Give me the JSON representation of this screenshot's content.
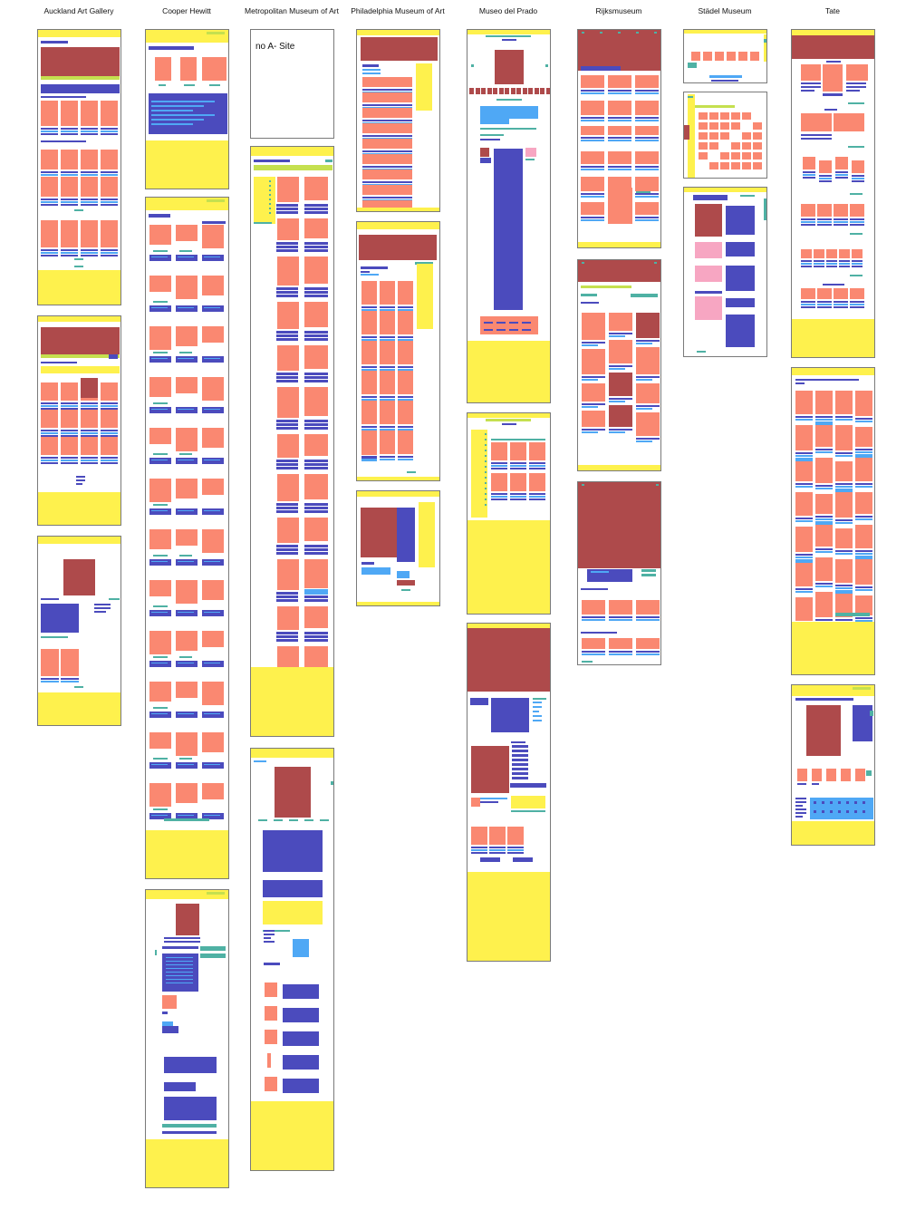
{
  "museums": [
    {
      "id": "auckland",
      "name": "Auckland Art Gallery"
    },
    {
      "id": "cooper",
      "name": "Cooper Hewitt"
    },
    {
      "id": "met",
      "name": "Metropolitan Museum of Art"
    },
    {
      "id": "phila",
      "name": "Philadelphia Museum of Art"
    },
    {
      "id": "prado",
      "name": "Museo del Prado"
    },
    {
      "id": "rijks",
      "name": "Rijksmuseum"
    },
    {
      "id": "stadel",
      "name": "Städel Museum"
    },
    {
      "id": "tate",
      "name": "Tate"
    }
  ],
  "empty_panel": {
    "text": "no A- Site"
  },
  "colors": {
    "header": "#fef14d",
    "footer": "#fef14d",
    "lime": "#c5e04f",
    "hero": "#ae4a4b",
    "image": "#fa8871",
    "nav": "#4b4bbd",
    "link": "#4fa8f5",
    "teal": "#4fb1a4",
    "pink": "#f7a6c2",
    "border": "#7a7a7a"
  }
}
